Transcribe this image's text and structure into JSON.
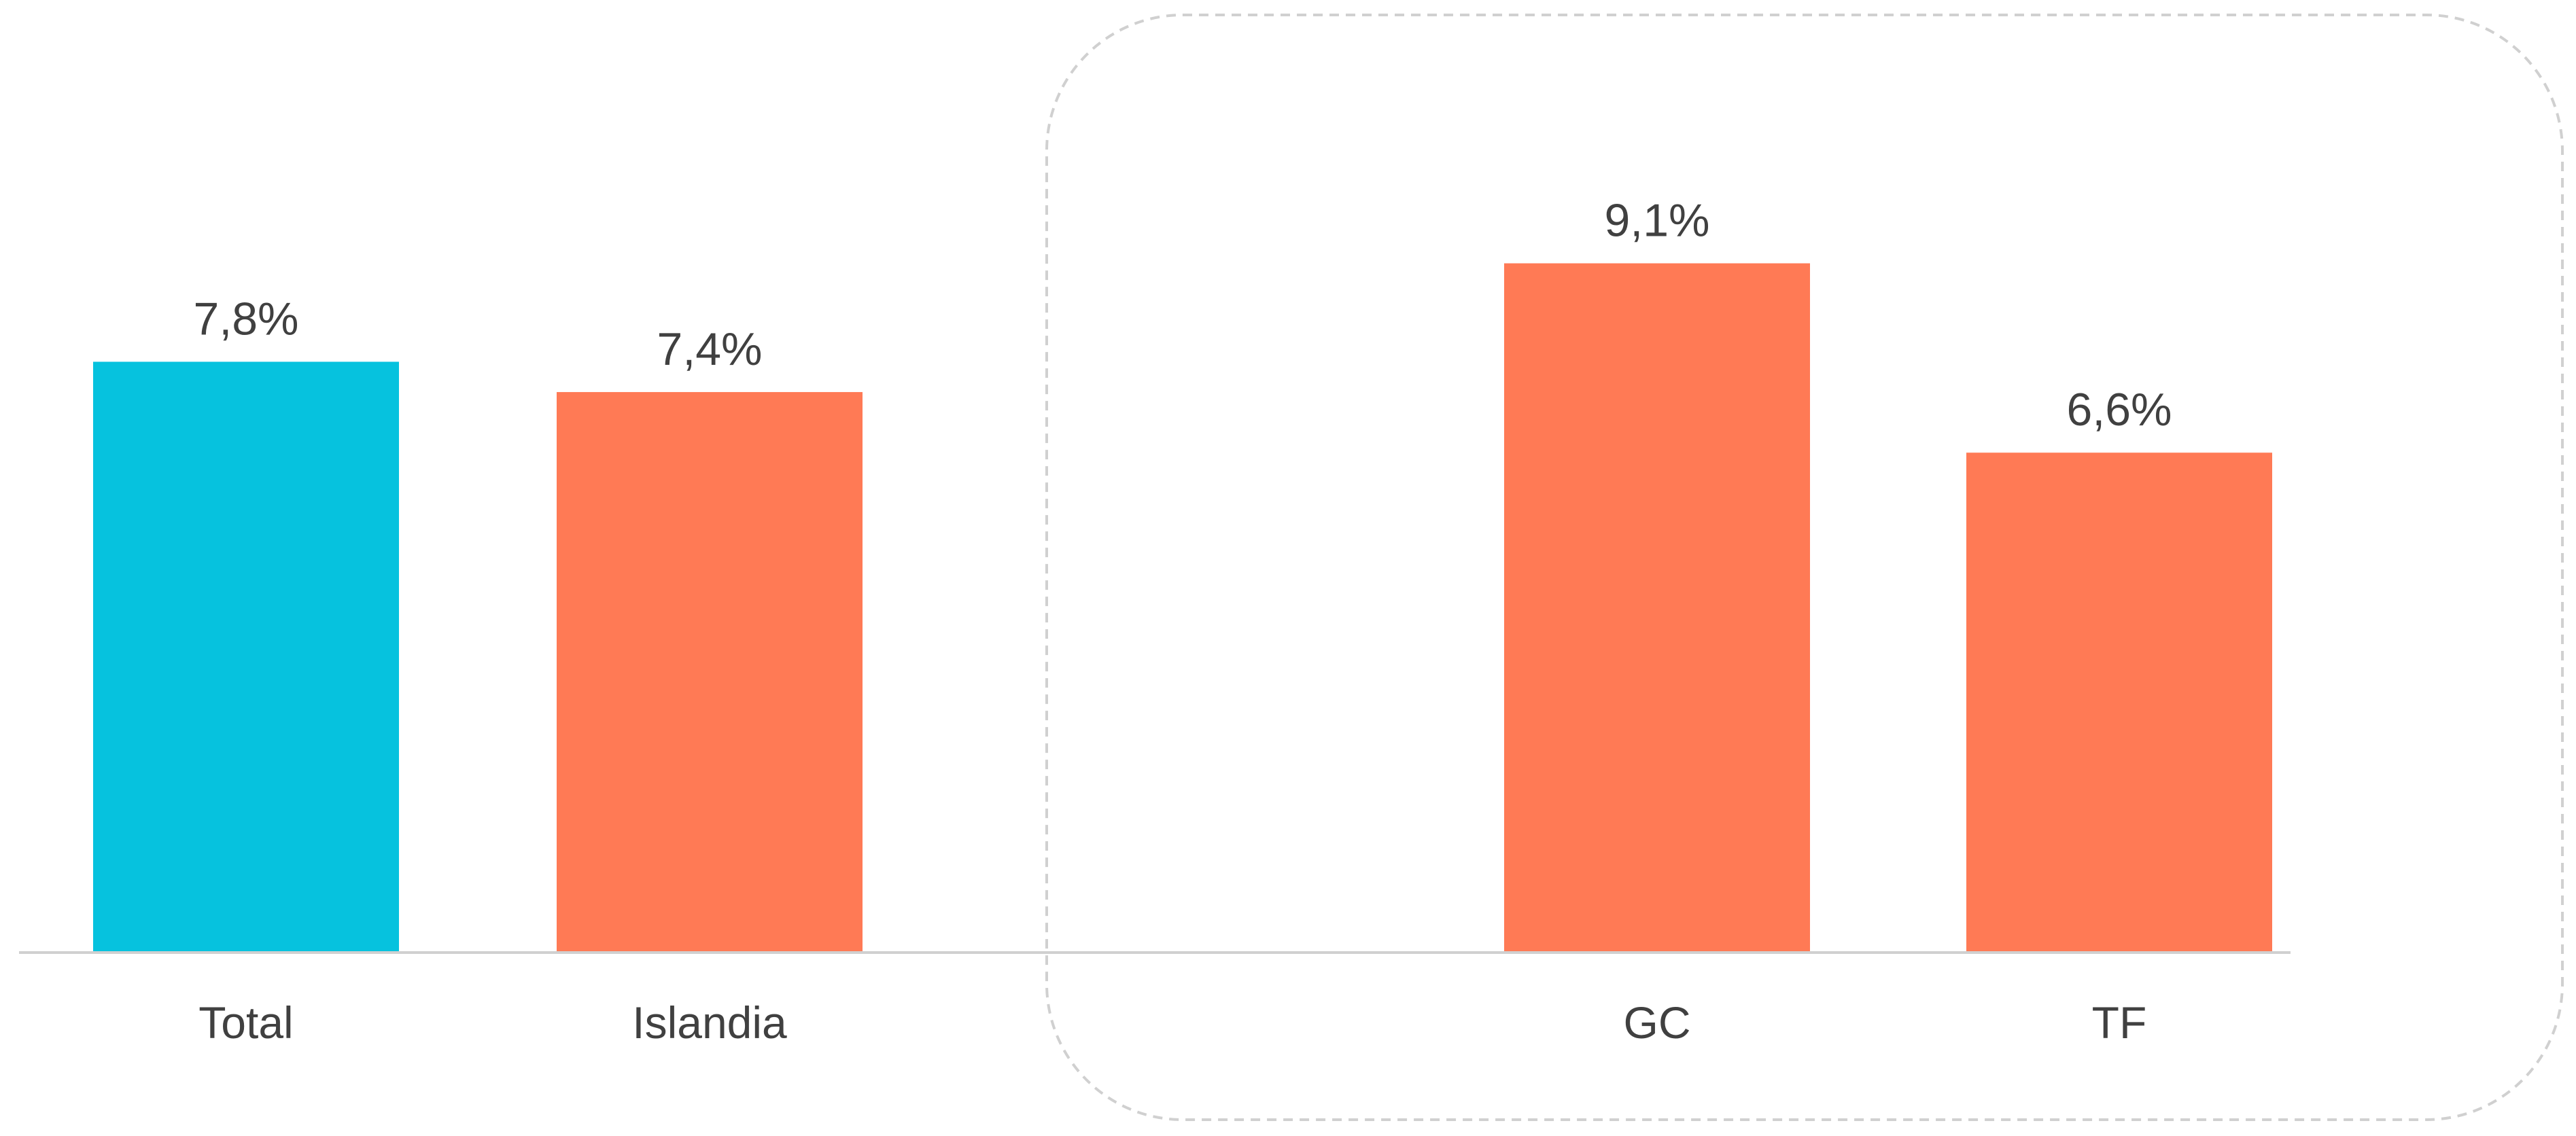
{
  "chart_data": {
    "type": "bar",
    "categories": [
      "Total",
      "Islandia",
      "GC",
      "TF"
    ],
    "values": [
      7.8,
      7.4,
      9.1,
      6.6
    ],
    "value_labels": [
      "7,8%",
      "7,4%",
      "9,1%",
      "6,6%"
    ],
    "bar_colors": [
      "#06C2DE",
      "#FF7A55",
      "#FF7A55",
      "#FF7A55"
    ],
    "title": "",
    "xlabel": "",
    "ylabel": "",
    "ylim": [
      0,
      11.5
    ],
    "grid": false,
    "legend": "none",
    "gap_before_category_index": 2,
    "highlight_group": {
      "categories": [
        "GC",
        "TF"
      ],
      "style": "dashed rounded box",
      "color": "#D0D0D0"
    },
    "axis_color": "#D0D0D0",
    "label_color": "#404040"
  }
}
